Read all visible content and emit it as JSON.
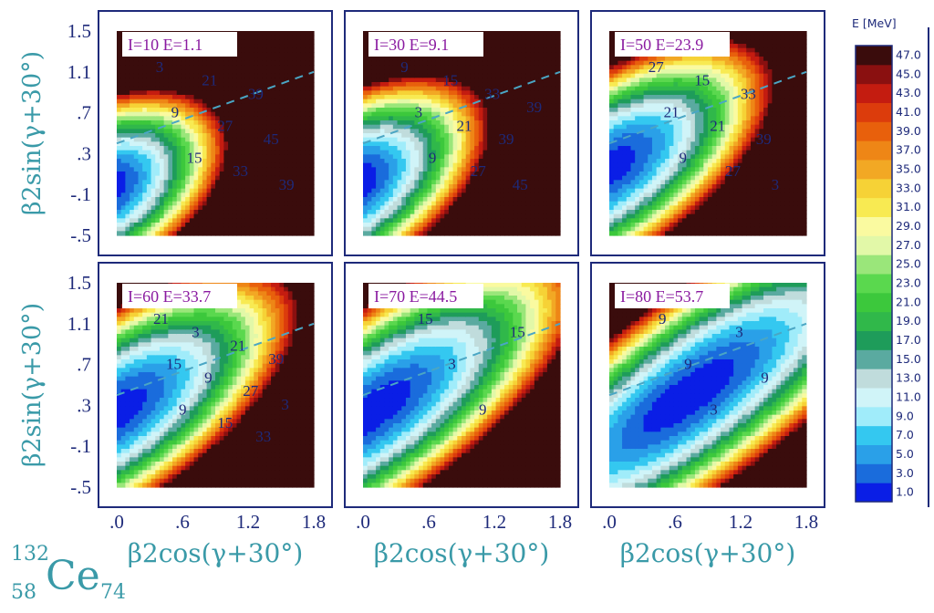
{
  "colors": {
    "frame": "#1e2a7a",
    "axis_label": "#3a9aa8",
    "panel_label_text": "#8a1aa0",
    "contour_line": "#111111",
    "dashed_line": "#4aa6c4"
  },
  "nucleus": {
    "mass_number": "132",
    "atomic_number": "58",
    "symbol": "Ce",
    "neutron_number": "74"
  },
  "colorbar": {
    "title": "E [MeV]",
    "levels": [
      "1.0",
      "3.0",
      "5.0",
      "7.0",
      "9.0",
      "11.0",
      "13.0",
      "15.0",
      "17.0",
      "19.0",
      "21.0",
      "23.0",
      "25.0",
      "27.0",
      "29.0",
      "31.0",
      "33.0",
      "35.0",
      "37.0",
      "39.0",
      "41.0",
      "43.0",
      "45.0",
      "47.0"
    ],
    "colors": [
      "#0a1ee6",
      "#1a6cdc",
      "#2aa0e8",
      "#34c8f0",
      "#a0ecfa",
      "#d0f4f8",
      "#c0dcdc",
      "#5aaaa0",
      "#1e9c5a",
      "#30b84a",
      "#3cc83c",
      "#5ad84e",
      "#9ae67a",
      "#e2f8a8",
      "#fafaa0",
      "#f8ea52",
      "#f6d236",
      "#f2a824",
      "#ee8616",
      "#e8600c",
      "#dc3c0c",
      "#c41c10",
      "#8a1010",
      "#3a0c0c"
    ]
  },
  "chart_data": {
    "type": "heatmap",
    "xlabel": "β2cos(γ+30°)",
    "ylabel": "β2sin(γ+30°)",
    "xlim": [
      0.0,
      1.8
    ],
    "ylim": [
      -0.5,
      1.5
    ],
    "x_ticks": [
      ".0",
      ".6",
      "1.2",
      "1.8"
    ],
    "y_ticks": [
      "1.5",
      "1.1",
      ".7",
      ".3",
      "-.1",
      "-.5"
    ],
    "panels": [
      {
        "label": "I=10 E=1.1",
        "spin": 10,
        "E_min": 1.1,
        "minimum": [
          0.02,
          0.0
        ],
        "contour_labels": [
          "3",
          "9",
          "15",
          "21",
          "27",
          "33",
          "39",
          "45",
          "39"
        ]
      },
      {
        "label": "I=30 E=9.1",
        "spin": 30,
        "E_min": 9.1,
        "minimum": [
          0.05,
          0.05
        ],
        "contour_labels": [
          "9",
          "3",
          "9",
          "15",
          "21",
          "27",
          "33",
          "39",
          "45",
          "39"
        ]
      },
      {
        "label": "I=50 E=23.9",
        "spin": 50,
        "E_min": 23.9,
        "minimum": [
          0.08,
          0.2
        ],
        "contour_labels": [
          "27",
          "21",
          "9",
          "15",
          "21",
          "27",
          "33",
          "39",
          "3"
        ]
      },
      {
        "label": "I=60 E=33.7",
        "spin": 60,
        "E_min": 33.7,
        "minimum": [
          0.1,
          0.3
        ],
        "contour_labels": [
          "21",
          "15",
          "9",
          "3",
          "9",
          "15",
          "21",
          "27",
          "33",
          "39",
          "3"
        ]
      },
      {
        "label": "I=70 E=44.5",
        "spin": 70,
        "E_min": 44.5,
        "minimum": [
          0.25,
          0.35
        ],
        "contour_labels": [
          "15",
          "3",
          "9",
          "15"
        ]
      },
      {
        "label": "I=80 E=53.7",
        "spin": 80,
        "E_min": 53.7,
        "minimum": [
          0.95,
          0.55
        ],
        "contour_labels": [
          "9",
          "9",
          "3",
          "3",
          "9"
        ]
      }
    ],
    "grid": false,
    "legend": "right"
  }
}
